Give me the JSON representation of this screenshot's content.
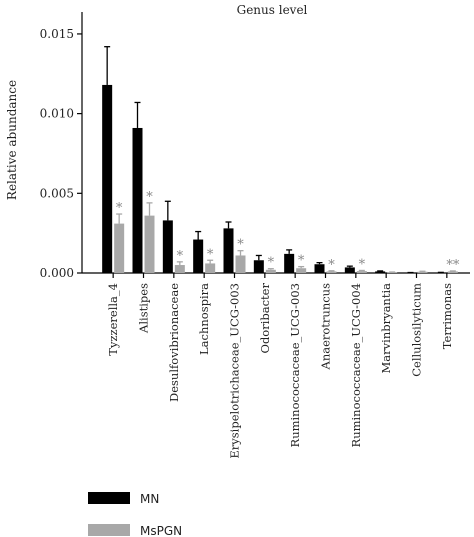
{
  "chart_data": {
    "type": "bar",
    "title": "Genus level",
    "ylabel": "Relative abundance",
    "xlabel": "",
    "ylim": [
      0,
      0.016
    ],
    "yticks": [
      "0.000",
      "0.005",
      "0.010",
      "0.015"
    ],
    "ytick_values": [
      0,
      0.005,
      0.01,
      0.015
    ],
    "categories": [
      "Tyzzerella_4",
      "Alistipes",
      "Desulfovibrionaceae",
      "Lachnospira",
      "Erysipelotrichaceae_UCG-003",
      "Odoribacter",
      "Ruminococcaceae_UCG-003",
      "Anaerotruncus",
      "Ruminococcaceae_UCG-004",
      "Marvinbryantia",
      "Cellulosilyticum",
      "Terrimonas"
    ],
    "series": [
      {
        "name": "MN",
        "color": "#000000",
        "values": [
          0.0118,
          0.0091,
          0.0033,
          0.0021,
          0.0028,
          0.0008,
          0.0012,
          0.00055,
          0.00035,
          0.0001,
          2e-05,
          3e-05
        ],
        "errors": [
          0.0024,
          0.0016,
          0.0012,
          0.0005,
          0.0004,
          0.0003,
          0.00025,
          0.0001,
          8e-05,
          3e-05,
          1e-05,
          1e-05
        ]
      },
      {
        "name": "MsPGN",
        "color": "#a8a8a8",
        "values": [
          0.0031,
          0.0036,
          0.0005,
          0.0006,
          0.0011,
          0.0002,
          0.0003,
          0.0001,
          0.00012,
          4e-05,
          8e-05,
          0.0001
        ],
        "errors": [
          0.0006,
          0.0008,
          0.0002,
          0.0002,
          0.0003,
          7e-05,
          0.0001,
          4e-05,
          4e-05,
          2e-05,
          3e-05,
          3e-05
        ]
      }
    ],
    "annotations": [
      "*",
      "*",
      "*",
      "*",
      "*",
      "*",
      "*",
      "*",
      "*",
      "",
      "",
      "**"
    ],
    "legend": {
      "position": "bottom-left",
      "entries": [
        "MN",
        "MsPGN"
      ]
    },
    "grid": false
  }
}
